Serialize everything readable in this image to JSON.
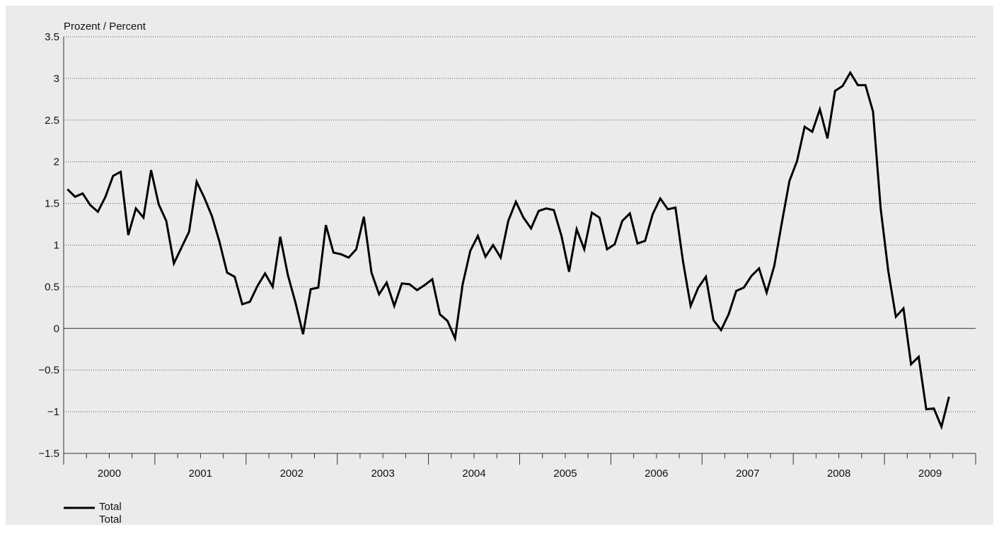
{
  "chart_data": {
    "type": "line",
    "unit_label": "Prozent / Percent",
    "ylim": [
      -1.5,
      3.5
    ],
    "yticks": [
      3.5,
      3,
      2.5,
      2,
      1.5,
      1,
      0.5,
      0,
      -0.5,
      -1,
      -1.5
    ],
    "ytick_labels": [
      "3.5",
      "3",
      "2.5",
      "2",
      "1.5",
      "1",
      "0.5",
      "0",
      "−0.5",
      "−1",
      "−1.5"
    ],
    "years": [
      "2000",
      "2001",
      "2002",
      "2003",
      "2004",
      "2005",
      "2006",
      "2007",
      "2008",
      "2009"
    ],
    "x_start": "2000-01",
    "grid": "horizontal dotted",
    "legend_position": "bottom-left",
    "colors": {
      "line": "#000000",
      "background": "#ebebeb",
      "grid": "#555555"
    },
    "series": [
      {
        "name": "Total",
        "name_second_line": "Total",
        "values": [
          1.67,
          1.58,
          1.62,
          1.48,
          1.4,
          1.58,
          1.83,
          1.88,
          1.12,
          1.44,
          1.33,
          1.9,
          1.49,
          1.29,
          0.78,
          0.97,
          1.16,
          1.76,
          1.57,
          1.35,
          1.04,
          0.67,
          0.62,
          0.29,
          0.32,
          0.51,
          0.66,
          0.5,
          1.1,
          0.64,
          0.31,
          -0.07,
          0.47,
          0.49,
          1.24,
          0.91,
          0.89,
          0.85,
          0.95,
          1.34,
          0.67,
          0.41,
          0.55,
          0.27,
          0.54,
          0.53,
          0.46,
          0.52,
          0.59,
          0.17,
          0.09,
          -0.12,
          0.53,
          0.93,
          1.11,
          0.86,
          1.0,
          0.85,
          1.29,
          1.52,
          1.33,
          1.2,
          1.41,
          1.44,
          1.42,
          1.11,
          0.68,
          1.19,
          0.95,
          1.39,
          1.33,
          0.95,
          1.01,
          1.29,
          1.38,
          1.02,
          1.05,
          1.37,
          1.56,
          1.43,
          1.45,
          0.8,
          0.27,
          0.49,
          0.62,
          0.1,
          -0.02,
          0.17,
          0.45,
          0.49,
          0.63,
          0.72,
          0.43,
          0.75,
          1.27,
          1.77,
          2.01,
          2.42,
          2.36,
          2.63,
          2.28,
          2.85,
          2.91,
          3.07,
          2.92,
          2.92,
          2.6,
          1.44,
          0.69,
          0.14,
          0.24,
          -0.43,
          -0.34,
          -0.97,
          -0.96,
          -1.18,
          -0.82
        ]
      }
    ]
  }
}
